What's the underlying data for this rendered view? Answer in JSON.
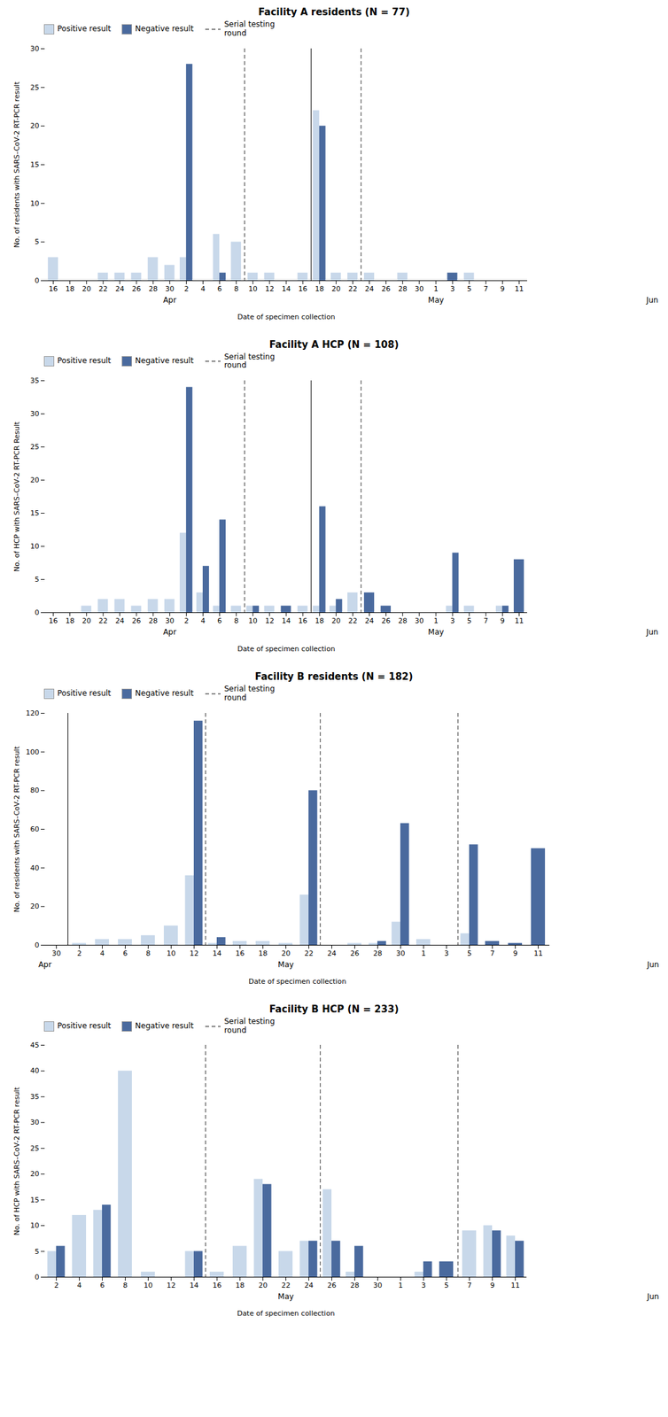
{
  "chart_data": [
    {
      "type": "bar",
      "title": "Facility A residents (N = 77)",
      "xlabel": "Date of specimen collection",
      "ylabel": "No. of residents with SARS–CoV-2 RT-PCR result",
      "categories": [
        "16",
        "18",
        "20",
        "22",
        "24",
        "26",
        "28",
        "30",
        "2",
        "4",
        "6",
        "8",
        "10",
        "12",
        "14",
        "16",
        "18",
        "20",
        "22",
        "24",
        "26",
        "28",
        "30",
        "1",
        "3",
        "5",
        "7",
        "9",
        "11"
      ],
      "series": [
        {
          "name": "Positive result",
          "color": "#c8d8ea",
          "values": [
            3,
            0,
            0,
            1,
            1,
            1,
            3,
            2,
            3,
            0,
            6,
            5,
            1,
            1,
            0,
            1,
            22,
            1,
            1,
            1,
            0,
            1,
            0,
            0,
            0,
            1,
            0,
            0,
            0
          ]
        },
        {
          "name": "Negative result",
          "color": "#4a6a9e",
          "values": [
            0,
            0,
            0,
            0,
            0,
            0,
            0,
            0,
            28,
            0,
            1,
            0,
            0,
            0,
            0,
            0,
            20,
            0,
            0,
            0,
            0,
            0,
            0,
            0,
            1,
            0,
            0,
            0,
            0
          ]
        }
      ],
      "ylim": [
        0,
        30
      ],
      "yticks": [
        0,
        5,
        10,
        15,
        20,
        25,
        30
      ],
      "legend": "upper left",
      "annotations": [
        {
          "text": "Apr",
          "x": 7
        },
        {
          "text": "May",
          "x": 23
        },
        {
          "text": "Jun",
          "x": 36
        }
      ],
      "reference_lines": [
        {
          "name": "Serial testing\nround",
          "x": [
            11.5,
            18.5
          ],
          "color": "#555555",
          "line_style": "dashed"
        }
      ],
      "dividers": {
        "x": [
          15.5
        ],
        "color": "#222222",
        "line_style": "solid"
      }
    },
    {
      "type": "bar",
      "title": "Facility A HCP (N = 108)",
      "xlabel": "Date of specimen collection",
      "ylabel": "No. of HCP with SARS–CoV-2 RT-PCR Result",
      "categories": [
        "16",
        "18",
        "20",
        "22",
        "24",
        "26",
        "28",
        "30",
        "2",
        "4",
        "6",
        "8",
        "10",
        "12",
        "14",
        "16",
        "18",
        "20",
        "22",
        "24",
        "26",
        "28",
        "30",
        "1",
        "3",
        "5",
        "7",
        "9",
        "11"
      ],
      "series": [
        {
          "name": "Positive result",
          "color": "#c8d8ea",
          "values": [
            0,
            0,
            1,
            2,
            2,
            1,
            2,
            2,
            12,
            3,
            1,
            1,
            1,
            1,
            0,
            1,
            1,
            1,
            3,
            0,
            0,
            0,
            0,
            0,
            1,
            1,
            0,
            1,
            0
          ]
        },
        {
          "name": "Negative result",
          "color": "#4a6a9e",
          "values": [
            0,
            0,
            0,
            0,
            0,
            0,
            0,
            0,
            34,
            7,
            14,
            0,
            1,
            0,
            1,
            0,
            16,
            2,
            0,
            3,
            1,
            0,
            0,
            0,
            9,
            0,
            0,
            1,
            8
          ]
        }
      ],
      "ylim": [
        0,
        35
      ],
      "yticks": [
        0,
        5,
        10,
        15,
        20,
        25,
        30,
        35
      ],
      "legend": "upper left",
      "annotations": [
        {
          "text": "Apr",
          "x": 7
        },
        {
          "text": "May",
          "x": 23
        },
        {
          "text": "Jun",
          "x": 36
        }
      ],
      "reference_lines": [
        {
          "name": "Serial testing\nround",
          "x": [
            11.5,
            18.5
          ],
          "color": "#555555",
          "line_style": "dashed"
        }
      ],
      "dividers": {
        "x": [
          15.5
        ],
        "color": "#222222",
        "line_style": "solid"
      }
    },
    {
      "type": "bar",
      "title": "Facility B residents (N = 182)",
      "xlabel": "Date of specimen collection",
      "ylabel": "No. of residents with SARS–CoV-2 RT-PCR result",
      "categories": [
        "30",
        "2",
        "4",
        "6",
        "8",
        "10",
        "12",
        "14",
        "16",
        "18",
        "20",
        "22",
        "24",
        "26",
        "28",
        "30",
        "1",
        "3",
        "5",
        "7",
        "9",
        "11"
      ],
      "series": [
        {
          "name": "Positive result",
          "color": "#c8d8ea",
          "values": [
            0,
            1,
            3,
            3,
            5,
            10,
            36,
            1,
            2,
            2,
            1,
            26,
            0,
            1,
            1,
            12,
            3,
            0,
            6,
            0,
            0,
            0
          ]
        },
        {
          "name": "Negative result",
          "color": "#4a6a9e",
          "values": [
            0,
            0,
            0,
            0,
            0,
            0,
            116,
            4,
            0,
            0,
            0,
            80,
            0,
            0,
            2,
            63,
            0,
            0,
            52,
            2,
            1,
            50
          ]
        }
      ],
      "ylim": [
        0,
        120
      ],
      "yticks": [
        0,
        20,
        40,
        60,
        80,
        100,
        120
      ],
      "legend": "upper left",
      "annotations": [
        {
          "text": "Apr",
          "x": -0.5
        },
        {
          "text": "May",
          "x": 10
        },
        {
          "text": "Jun",
          "x": 26
        }
      ],
      "reference_lines": [
        {
          "name": "Serial testing\nround",
          "x": [
            6.5,
            11.5,
            17.5
          ],
          "color": "#555555",
          "line_style": "dashed"
        }
      ],
      "dividers": {
        "x": [
          0.5
        ],
        "color": "#222222",
        "line_style": "solid"
      }
    },
    {
      "type": "bar",
      "title": "Facility B HCP (N = 233)",
      "xlabel": "Date of specimen collection",
      "ylabel": "No. of HCP with SARS–CoV-2 RT-PCR result",
      "categories": [
        "2",
        "4",
        "6",
        "8",
        "10",
        "12",
        "14",
        "16",
        "18",
        "20",
        "22",
        "24",
        "26",
        "28",
        "30",
        "1",
        "3",
        "5",
        "7",
        "9",
        "11"
      ],
      "series": [
        {
          "name": "Positive result",
          "color": "#c8d8ea",
          "values": [
            5,
            12,
            13,
            40,
            1,
            0,
            5,
            1,
            6,
            19,
            5,
            7,
            17,
            1,
            0,
            0,
            1,
            0,
            9,
            10,
            8
          ]
        },
        {
          "name": "Negative result",
          "color": "#4a6a9e",
          "values": [
            6,
            0,
            14,
            0,
            0,
            0,
            5,
            0,
            0,
            18,
            0,
            7,
            7,
            6,
            0,
            0,
            3,
            3,
            0,
            9,
            7
          ]
        }
      ],
      "ylim": [
        0,
        45
      ],
      "yticks": [
        0,
        5,
        10,
        15,
        20,
        25,
        30,
        35,
        40,
        45
      ],
      "legend": "upper left",
      "annotations": [
        {
          "text": "May",
          "x": 10
        },
        {
          "text": "Jun",
          "x": 26
        }
      ],
      "reference_lines": [
        {
          "name": "Serial testing\nround",
          "x": [
            6.5,
            11.5,
            17.5
          ],
          "color": "#555555",
          "line_style": "dashed"
        }
      ]
    }
  ]
}
